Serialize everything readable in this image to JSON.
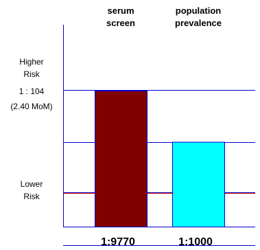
{
  "chart_data": {
    "type": "bar",
    "categories": [
      [
        "serum",
        "screen"
      ],
      [
        "population",
        "prevalence"
      ]
    ],
    "values_label": [
      "1:9770",
      "1:1000"
    ],
    "risk_odds": [
      9770,
      1000
    ],
    "cutoff": {
      "label": "1 : 104",
      "sublabel": "(2.40 MoM)",
      "risk_odds": 104,
      "line_colors": [
        "#0000cc",
        "#cc0000"
      ]
    },
    "y_labels": {
      "higher": [
        "Higher",
        "Risk"
      ],
      "lower": [
        "Lower",
        "Risk"
      ]
    },
    "reference_levels_odds": [
      10,
      1000,
      10000
    ],
    "bar_colors": [
      "#800000",
      "#00ffff"
    ],
    "grid_color": "#0000cc",
    "axis_color": "#0000cc",
    "scale": "log-odds"
  }
}
